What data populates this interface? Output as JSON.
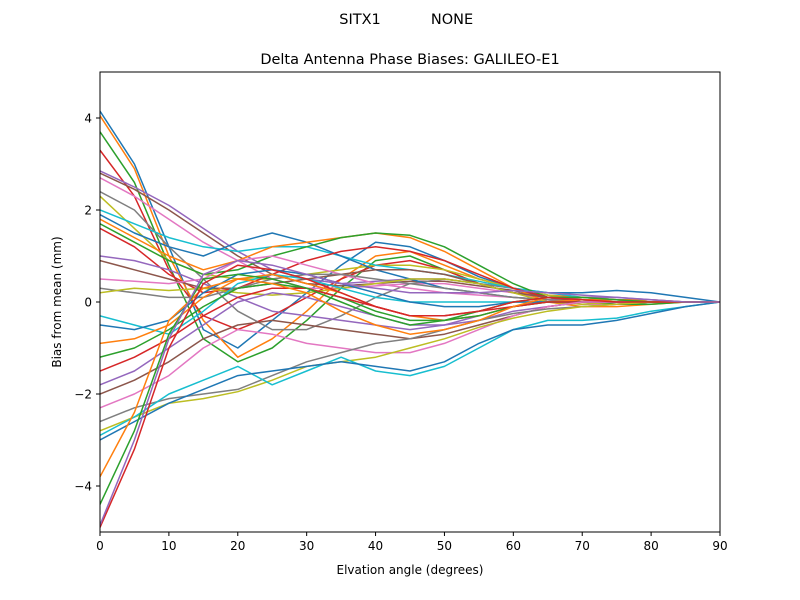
{
  "suptitle": {
    "left": "SITX1",
    "right": "NONE"
  },
  "chart_data": {
    "type": "line",
    "title": "Delta Antenna Phase Biases: GALILEO-E1",
    "xlabel": "Elvation angle (degrees)",
    "ylabel": "Bias from mean (mm)",
    "xlim": [
      0,
      90
    ],
    "ylim": [
      -5,
      5
    ],
    "xticks": [
      "0",
      "10",
      "20",
      "30",
      "40",
      "50",
      "60",
      "70",
      "80",
      "90"
    ],
    "yticks": [
      "−4",
      "−2",
      "0",
      "2",
      "4"
    ],
    "grid": false,
    "legend": "none",
    "colors": [
      "#1f77b4",
      "#ff7f0e",
      "#2ca02c",
      "#d62728",
      "#9467bd",
      "#8c564b",
      "#e377c2",
      "#7f7f7f",
      "#bcbd22",
      "#17becf"
    ],
    "x": [
      0,
      5,
      10,
      15,
      20,
      25,
      30,
      35,
      40,
      45,
      50,
      55,
      60,
      65,
      70,
      75,
      80,
      85,
      90
    ],
    "series": [
      {
        "values": [
          4.15,
          3.0,
          1.2,
          -0.6,
          -1.0,
          -0.4,
          0.2,
          0.8,
          1.3,
          1.2,
          0.9,
          0.55,
          0.3,
          0.2,
          0.2,
          0.25,
          0.2,
          0.1,
          0.0
        ]
      },
      {
        "values": [
          4.05,
          2.9,
          1.0,
          -0.4,
          -1.2,
          -0.8,
          -0.2,
          0.5,
          1.0,
          1.1,
          0.8,
          0.5,
          0.3,
          0.15,
          0.1,
          0.05,
          0.05,
          0.0,
          0.0
        ]
      },
      {
        "values": [
          3.7,
          2.6,
          0.8,
          -0.8,
          -1.3,
          -1.0,
          -0.4,
          0.3,
          0.9,
          1.0,
          0.7,
          0.4,
          0.2,
          0.1,
          0.05,
          0.0,
          0.0,
          0.0,
          0.0
        ]
      },
      {
        "values": [
          3.3,
          2.3,
          0.7,
          -0.3,
          -0.6,
          -0.3,
          0.1,
          0.5,
          0.8,
          0.9,
          0.7,
          0.4,
          0.2,
          0.1,
          0.05,
          0.05,
          0.0,
          0.0,
          0.0
        ]
      },
      {
        "values": [
          2.85,
          2.5,
          2.1,
          1.6,
          1.1,
          0.7,
          0.5,
          0.4,
          0.45,
          0.5,
          0.5,
          0.4,
          0.3,
          0.15,
          0.05,
          0.0,
          0.0,
          0.0,
          0.0
        ]
      },
      {
        "values": [
          2.8,
          2.45,
          2.0,
          1.5,
          1.0,
          0.6,
          0.4,
          0.35,
          0.4,
          0.45,
          0.45,
          0.35,
          0.25,
          0.1,
          0.0,
          -0.05,
          0.0,
          0.0,
          0.0
        ]
      },
      {
        "values": [
          2.7,
          2.3,
          1.8,
          1.3,
          0.9,
          0.5,
          0.3,
          0.3,
          0.35,
          0.4,
          0.4,
          0.3,
          0.2,
          0.05,
          -0.05,
          -0.05,
          0.0,
          0.0,
          0.0
        ]
      },
      {
        "values": [
          2.4,
          2.0,
          1.2,
          0.5,
          -0.2,
          -0.6,
          -0.6,
          -0.3,
          0.1,
          0.4,
          0.5,
          0.4,
          0.3,
          0.1,
          0.0,
          0.0,
          0.0,
          0.0,
          0.0
        ]
      },
      {
        "values": [
          2.3,
          1.6,
          0.9,
          0.6,
          0.5,
          0.5,
          0.6,
          0.7,
          0.8,
          0.8,
          0.7,
          0.5,
          0.3,
          0.15,
          0.05,
          0.0,
          0.0,
          0.0,
          0.0
        ]
      },
      {
        "values": [
          2.0,
          1.7,
          1.4,
          1.2,
          1.1,
          1.2,
          1.2,
          1.0,
          0.8,
          0.7,
          0.6,
          0.45,
          0.3,
          0.2,
          0.1,
          0.05,
          0.0,
          0.0,
          0.0
        ]
      },
      {
        "values": [
          1.9,
          1.5,
          1.2,
          1.0,
          1.3,
          1.5,
          1.3,
          1.0,
          0.7,
          0.5,
          0.3,
          0.2,
          0.1,
          0.05,
          0.0,
          0.0,
          0.0,
          0.0,
          0.0
        ]
      },
      {
        "values": [
          1.8,
          1.4,
          1.0,
          0.7,
          0.9,
          1.2,
          1.3,
          1.4,
          1.5,
          1.4,
          1.1,
          0.7,
          0.3,
          0.0,
          -0.1,
          -0.1,
          -0.05,
          0.0,
          0.0
        ]
      },
      {
        "values": [
          1.7,
          1.3,
          0.9,
          0.6,
          0.7,
          1.0,
          1.2,
          1.4,
          1.5,
          1.45,
          1.2,
          0.8,
          0.4,
          0.1,
          0.0,
          -0.05,
          -0.05,
          0.0,
          0.0
        ]
      },
      {
        "values": [
          1.6,
          1.2,
          0.6,
          0.2,
          0.3,
          0.6,
          0.9,
          1.1,
          1.2,
          1.1,
          0.9,
          0.6,
          0.3,
          0.1,
          0.0,
          0.0,
          0.0,
          0.0,
          0.0
        ]
      },
      {
        "values": [
          1.0,
          0.9,
          0.7,
          0.4,
          0.1,
          -0.2,
          -0.3,
          -0.4,
          -0.5,
          -0.6,
          -0.5,
          -0.3,
          -0.1,
          0.05,
          0.1,
          0.1,
          0.05,
          0.0,
          0.0
        ]
      },
      {
        "values": [
          0.9,
          0.7,
          0.5,
          0.3,
          0.3,
          0.4,
          0.5,
          0.6,
          0.7,
          0.7,
          0.6,
          0.4,
          0.2,
          0.1,
          0.0,
          0.0,
          0.0,
          0.0,
          0.0
        ]
      },
      {
        "values": [
          0.5,
          0.45,
          0.4,
          0.5,
          0.9,
          1.0,
          0.8,
          0.6,
          0.4,
          0.3,
          0.2,
          0.15,
          0.1,
          0.05,
          0.0,
          0.0,
          0.0,
          0.0,
          0.0
        ]
      },
      {
        "values": [
          0.3,
          0.2,
          0.1,
          0.1,
          0.3,
          0.5,
          0.6,
          0.6,
          0.5,
          0.4,
          0.3,
          0.2,
          0.1,
          0.05,
          0.0,
          0.0,
          0.0,
          0.0,
          0.0
        ]
      },
      {
        "values": [
          0.2,
          0.3,
          0.25,
          0.3,
          0.2,
          0.15,
          0.2,
          0.3,
          0.4,
          0.5,
          0.5,
          0.4,
          0.2,
          0.0,
          -0.05,
          0.0,
          0.0,
          0.0,
          0.0
        ]
      },
      {
        "values": [
          -0.3,
          -0.5,
          -0.7,
          -0.2,
          0.4,
          0.6,
          0.5,
          0.3,
          0.1,
          0.0,
          0.0,
          0.0,
          0.0,
          0.0,
          0.0,
          0.0,
          0.0,
          0.0,
          0.0
        ]
      },
      {
        "values": [
          -0.5,
          -0.6,
          -0.4,
          0.2,
          0.6,
          0.7,
          0.6,
          0.4,
          0.2,
          0.0,
          -0.1,
          -0.1,
          0.0,
          0.0,
          0.0,
          0.0,
          0.0,
          0.0,
          0.0
        ]
      },
      {
        "values": [
          -0.9,
          -0.8,
          -0.5,
          0.1,
          0.5,
          0.6,
          0.4,
          0.2,
          -0.1,
          -0.3,
          -0.4,
          -0.3,
          -0.1,
          0.0,
          0.05,
          0.05,
          0.0,
          0.0,
          0.0
        ]
      },
      {
        "values": [
          -1.2,
          -1.0,
          -0.6,
          -0.1,
          0.3,
          0.4,
          0.3,
          0.1,
          -0.2,
          -0.4,
          -0.4,
          -0.3,
          -0.1,
          0.0,
          0.0,
          0.0,
          0.0,
          0.0,
          0.0
        ]
      },
      {
        "values": [
          -1.5,
          -1.2,
          -0.8,
          -0.3,
          0.1,
          0.3,
          0.3,
          0.1,
          -0.1,
          -0.3,
          -0.3,
          -0.2,
          -0.1,
          0.0,
          0.0,
          0.0,
          0.0,
          0.0,
          0.0
        ]
      },
      {
        "values": [
          -1.8,
          -1.5,
          -1.0,
          -0.5,
          0.0,
          0.2,
          0.1,
          -0.1,
          -0.3,
          -0.5,
          -0.5,
          -0.4,
          -0.2,
          -0.1,
          0.0,
          0.0,
          0.0,
          0.0,
          0.0
        ]
      },
      {
        "values": [
          -2.0,
          -1.7,
          -1.3,
          -0.8,
          -0.5,
          -0.4,
          -0.5,
          -0.6,
          -0.7,
          -0.8,
          -0.7,
          -0.5,
          -0.3,
          -0.1,
          0.0,
          0.0,
          0.0,
          0.0,
          0.0
        ]
      },
      {
        "values": [
          -2.3,
          -2.0,
          -1.6,
          -1.0,
          -0.6,
          -0.7,
          -0.9,
          -1.0,
          -1.1,
          -1.1,
          -0.9,
          -0.6,
          -0.3,
          -0.1,
          0.0,
          0.0,
          0.0,
          0.0,
          0.0
        ]
      },
      {
        "values": [
          -2.6,
          -2.3,
          -2.1,
          -2.0,
          -1.9,
          -1.6,
          -1.3,
          -1.1,
          -0.9,
          -0.8,
          -0.6,
          -0.4,
          -0.25,
          -0.15,
          -0.1,
          -0.05,
          0.0,
          0.0,
          0.0
        ]
      },
      {
        "values": [
          -2.8,
          -2.5,
          -2.2,
          -2.1,
          -1.95,
          -1.7,
          -1.4,
          -1.3,
          -1.2,
          -1.0,
          -0.8,
          -0.55,
          -0.35,
          -0.2,
          -0.1,
          -0.05,
          0.0,
          0.0,
          0.0
        ]
      },
      {
        "values": [
          -2.9,
          -2.5,
          -2.0,
          -1.7,
          -1.4,
          -1.8,
          -1.5,
          -1.2,
          -1.5,
          -1.6,
          -1.4,
          -1.0,
          -0.6,
          -0.4,
          -0.4,
          -0.35,
          -0.2,
          -0.1,
          0.0
        ]
      },
      {
        "values": [
          -3.0,
          -2.6,
          -2.2,
          -1.9,
          -1.6,
          -1.5,
          -1.4,
          -1.3,
          -1.4,
          -1.5,
          -1.3,
          -0.9,
          -0.6,
          -0.5,
          -0.5,
          -0.4,
          -0.25,
          -0.1,
          0.0
        ]
      },
      {
        "values": [
          -3.8,
          -2.4,
          -0.4,
          0.3,
          0.5,
          0.4,
          0.2,
          -0.2,
          -0.5,
          -0.7,
          -0.6,
          -0.4,
          -0.1,
          0.1,
          0.1,
          0.05,
          0.0,
          0.0,
          0.0
        ]
      },
      {
        "values": [
          -4.4,
          -2.8,
          -0.7,
          0.5,
          0.6,
          0.5,
          0.3,
          0.0,
          -0.3,
          -0.5,
          -0.4,
          -0.2,
          0.0,
          0.1,
          0.1,
          0.05,
          0.0,
          0.0,
          0.0
        ]
      },
      {
        "values": [
          -4.9,
          -3.2,
          -1.0,
          0.4,
          0.8,
          0.7,
          0.5,
          0.2,
          -0.1,
          -0.3,
          -0.3,
          -0.2,
          0.0,
          0.1,
          0.05,
          0.0,
          0.0,
          0.0,
          0.0
        ]
      },
      {
        "values": [
          -4.85,
          -3.0,
          -0.8,
          0.6,
          0.9,
          0.8,
          0.6,
          0.4,
          0.3,
          0.2,
          0.2,
          0.2,
          0.25,
          0.2,
          0.15,
          0.1,
          0.05,
          0.0,
          0.0
        ]
      }
    ]
  }
}
